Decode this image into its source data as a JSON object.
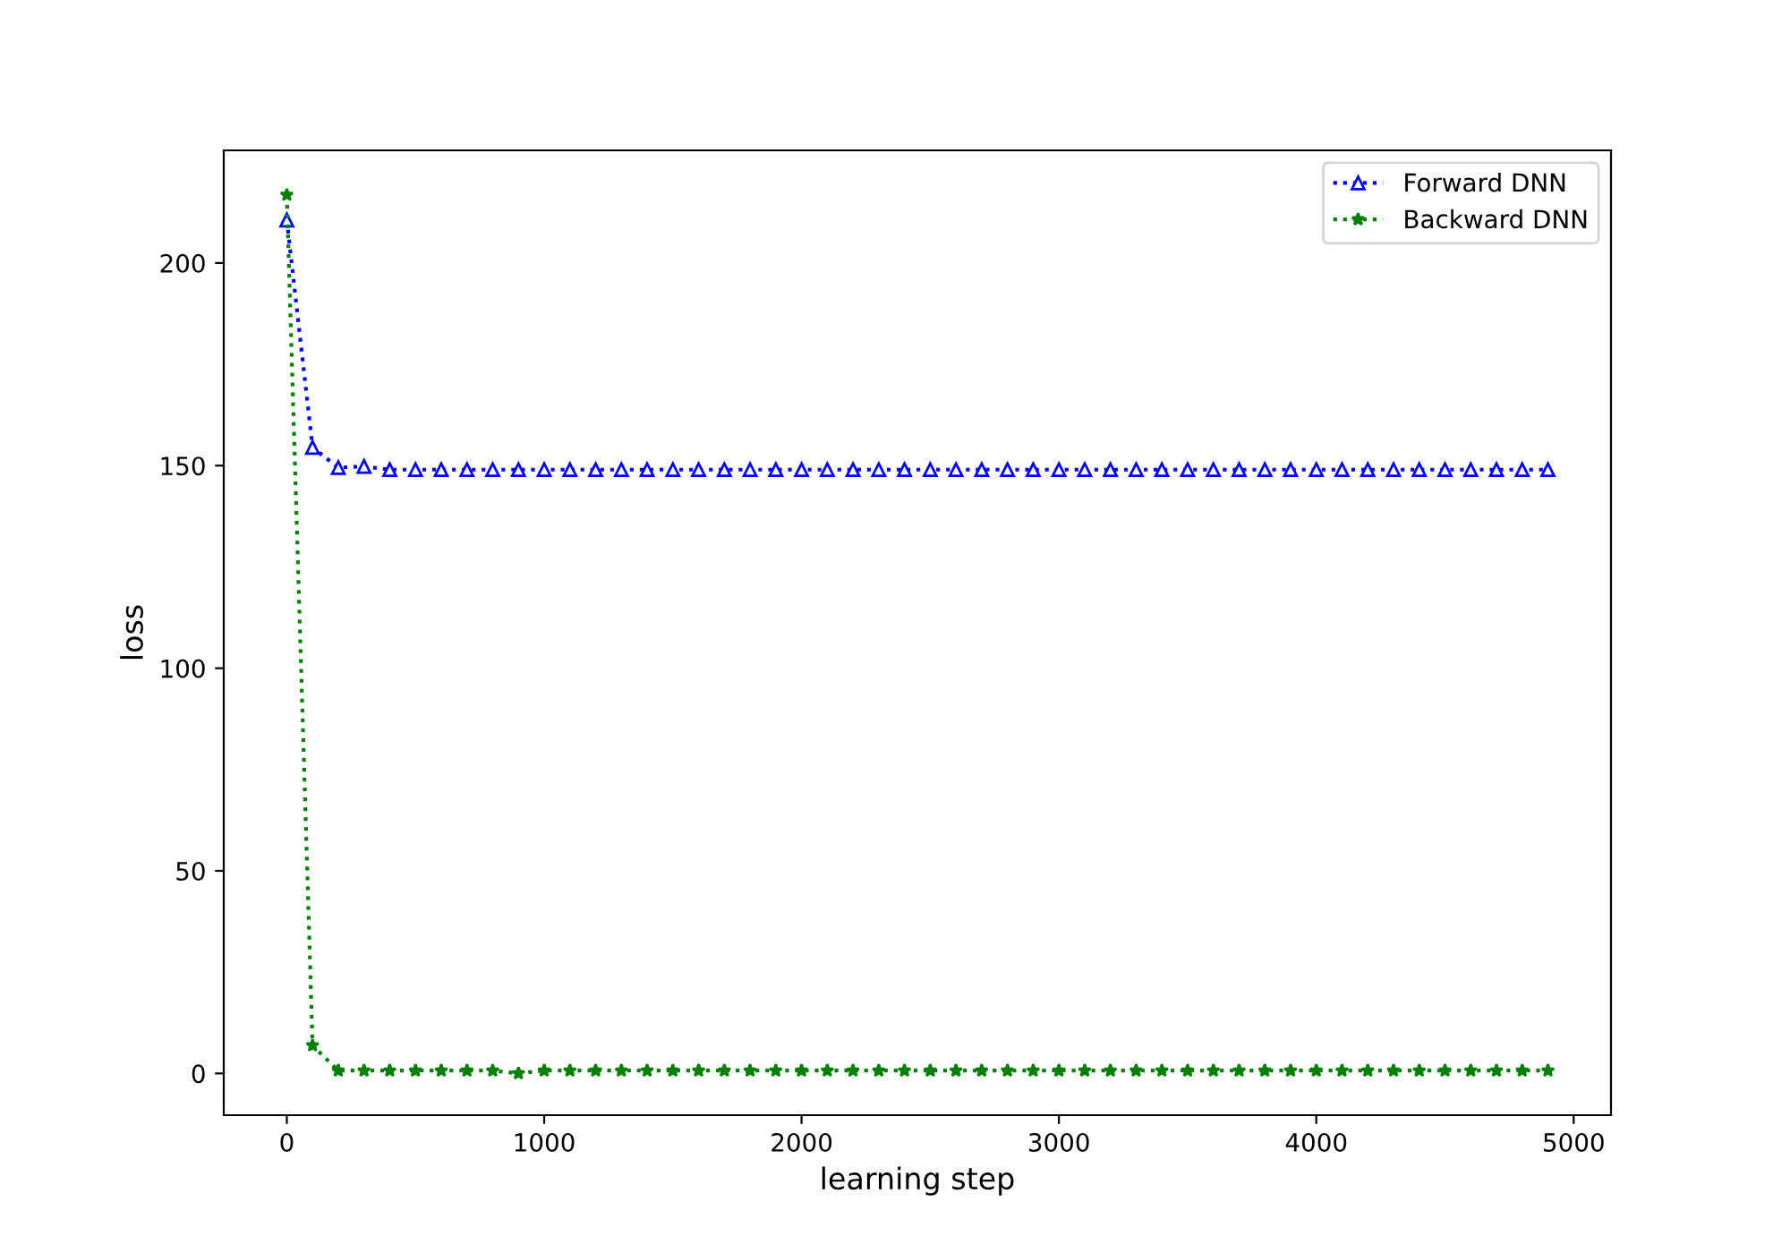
{
  "chart_data": {
    "type": "line",
    "xlabel": "learning step",
    "ylabel": "loss",
    "x": [
      0,
      100,
      200,
      300,
      400,
      500,
      600,
      700,
      800,
      900,
      1000,
      1100,
      1200,
      1300,
      1400,
      1500,
      1600,
      1700,
      1800,
      1900,
      2000,
      2100,
      2200,
      2300,
      2400,
      2500,
      2600,
      2700,
      2800,
      2900,
      3000,
      3100,
      3200,
      3300,
      3400,
      3500,
      3600,
      3700,
      3800,
      3900,
      4000,
      4100,
      4200,
      4300,
      4400,
      4500,
      4600,
      4700,
      4800,
      4900
    ],
    "series": [
      {
        "name": "Forward DNN",
        "color": "#0000ff",
        "marker": "triangle",
        "values": [
          210.6,
          154.5,
          149.5,
          149.8,
          149,
          149,
          149,
          149,
          149,
          149,
          149,
          149,
          149,
          149,
          149,
          149,
          149,
          149,
          149,
          149,
          149,
          149,
          149,
          149,
          149,
          149,
          149,
          149,
          149,
          149,
          149,
          149,
          149,
          149,
          149,
          149,
          149,
          149,
          149,
          149,
          149,
          149,
          149,
          149,
          149,
          149,
          149,
          149,
          149,
          149
        ]
      },
      {
        "name": "Backward DNN",
        "color": "#008000",
        "marker": "star",
        "values": [
          216.8,
          6.9,
          0.7,
          0.7,
          0.7,
          0.7,
          0.7,
          0.7,
          0.7,
          0,
          0.7,
          0.7,
          0.7,
          0.7,
          0.7,
          0.7,
          0.7,
          0.7,
          0.7,
          0.7,
          0.7,
          0.7,
          0.7,
          0.7,
          0.7,
          0.7,
          0.7,
          0.7,
          0.7,
          0.7,
          0.7,
          0.7,
          0.7,
          0.7,
          0.7,
          0.7,
          0.7,
          0.7,
          0.7,
          0.7,
          0.7,
          0.7,
          0.7,
          0.7,
          0.7,
          0.7,
          0.7,
          0.7,
          0.7,
          0.7
        ]
      }
    ],
    "line_style": "dotted",
    "xlim": [
      -245,
      5145
    ],
    "ylim": [
      -10.3,
      227.8
    ],
    "xticks": [
      0,
      1000,
      2000,
      3000,
      4000,
      5000
    ],
    "yticks": [
      0,
      50,
      100,
      150,
      200
    ],
    "grid": false,
    "legend": "top right"
  }
}
